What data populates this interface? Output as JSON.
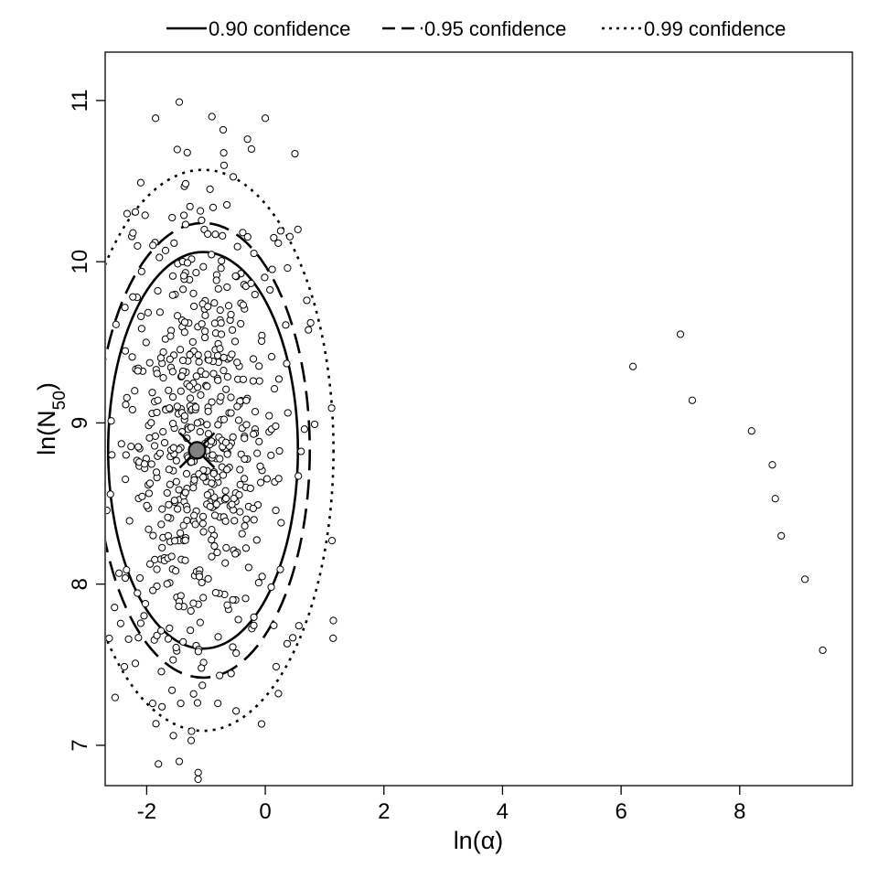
{
  "chart_data": {
    "type": "scatter",
    "xlabel": "ln(α)",
    "ylabel": "ln(N50)",
    "ylabel_parts": {
      "prefix": "ln(N",
      "sub": "50",
      "suffix": ")"
    },
    "xlim": [
      -2.7,
      9.9
    ],
    "ylim": [
      6.75,
      11.3
    ],
    "x_ticks": [
      -2,
      0,
      2,
      4,
      6,
      8
    ],
    "y_ticks": [
      7,
      8,
      9,
      10,
      11
    ],
    "x_tick_labels": [
      "-2",
      "0",
      "2",
      "4",
      "6",
      "8"
    ],
    "y_tick_labels": [
      "7",
      "8",
      "9",
      "10",
      "11"
    ],
    "grid": false,
    "legend": {
      "placement": "top",
      "entries": [
        {
          "label": "0.90 confidence",
          "style": "solid"
        },
        {
          "label": "0.95 confidence",
          "style": "dashed"
        },
        {
          "label": "0.99 confidence",
          "style": "dotted"
        }
      ]
    },
    "estimate": {
      "x": -1.15,
      "y": 8.83
    },
    "ellipses": [
      {
        "name": "0.90 confidence",
        "style": "solid",
        "cx": -1.05,
        "cy": 8.83,
        "rx": 1.6,
        "ry": 1.23
      },
      {
        "name": "0.95 confidence",
        "style": "dashed",
        "cx": -1.05,
        "cy": 8.83,
        "rx": 1.8,
        "ry": 1.41
      },
      {
        "name": "0.99 confidence",
        "style": "dotted",
        "cx": -1.05,
        "cy": 8.83,
        "rx": 2.2,
        "ry": 1.74
      }
    ],
    "cluster": {
      "cx": -1.1,
      "cy": 8.85,
      "sx": 0.72,
      "sy": 0.78,
      "n": 600,
      "seed": 7
    },
    "outliers": [
      {
        "x": 6.2,
        "y": 9.35
      },
      {
        "x": 7.0,
        "y": 9.55
      },
      {
        "x": 7.2,
        "y": 9.14
      },
      {
        "x": 8.2,
        "y": 8.95
      },
      {
        "x": 8.55,
        "y": 8.74
      },
      {
        "x": 8.6,
        "y": 8.53
      },
      {
        "x": 8.7,
        "y": 8.3
      },
      {
        "x": 9.1,
        "y": 8.03
      },
      {
        "x": 9.4,
        "y": 7.59
      },
      {
        "x": -1.45,
        "y": 10.99
      },
      {
        "x": -1.85,
        "y": 10.89
      },
      {
        "x": 0.0,
        "y": 10.89
      },
      {
        "x": -0.9,
        "y": 10.9
      },
      {
        "x": 0.5,
        "y": 10.67
      },
      {
        "x": -2.1,
        "y": 10.49
      },
      {
        "x": 0.55,
        "y": 10.2
      },
      {
        "x": -1.45,
        "y": 6.9
      },
      {
        "x": -1.55,
        "y": 7.06
      },
      {
        "x": -1.25,
        "y": 7.03
      },
      {
        "x": -0.8,
        "y": 7.26
      },
      {
        "x": -1.9,
        "y": 7.26
      },
      {
        "x": -0.3,
        "y": 10.76
      },
      {
        "x": 0.7,
        "y": 9.76
      }
    ]
  }
}
